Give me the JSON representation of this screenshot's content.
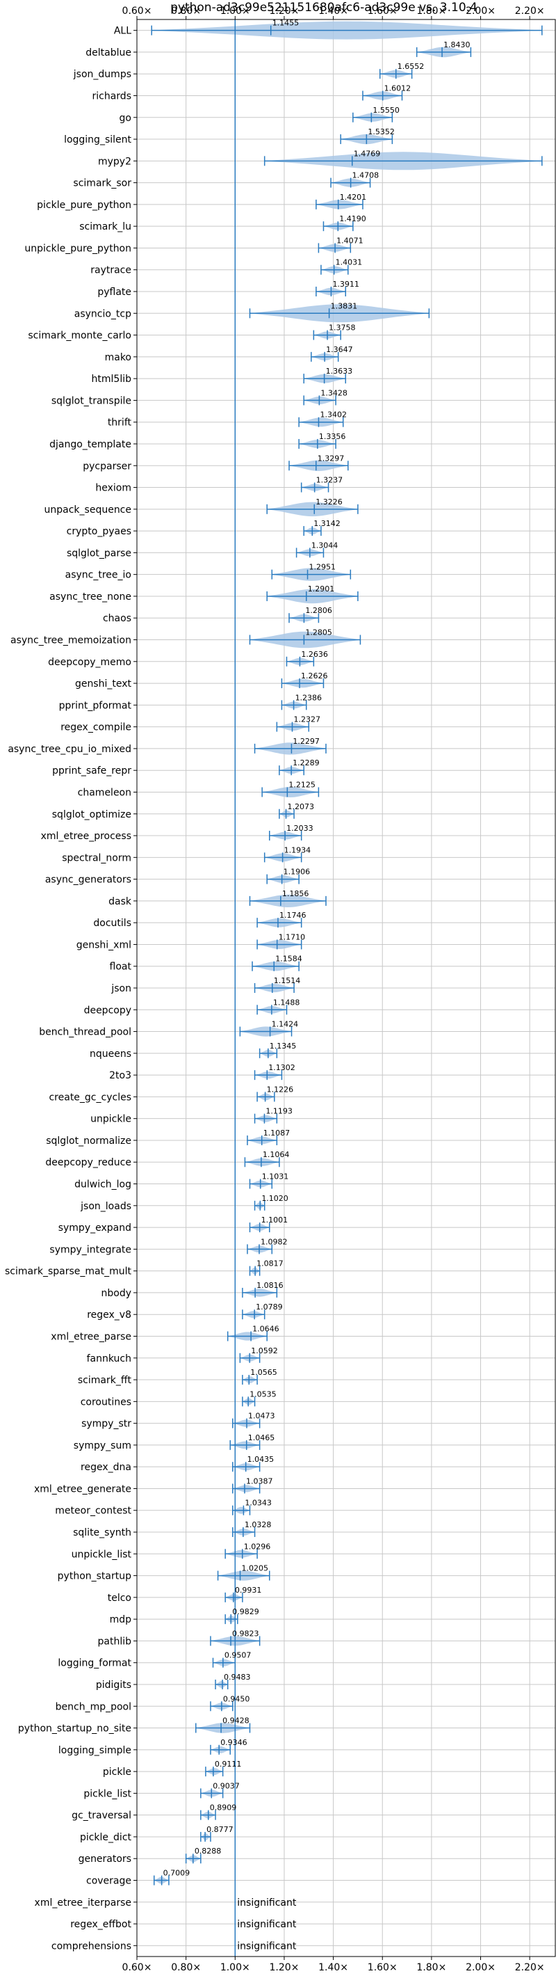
{
  "chart_data": {
    "type": "violin",
    "title": "python-ad3c99e521151680afc6-ad3c99e vs. 3.10.4",
    "xlabel": "",
    "ylabel": "",
    "xlim": [
      0.6,
      2.3
    ],
    "xticks": [
      0.6,
      0.8,
      1.0,
      1.2,
      1.4,
      1.6,
      1.8,
      2.0,
      2.2
    ],
    "xtick_labels": [
      "0.60×",
      "0.80×",
      "1.00×",
      "1.20×",
      "1.40×",
      "1.60×",
      "1.80×",
      "2.00×",
      "2.20×"
    ],
    "reference_line": 1.0,
    "grid": true,
    "colors": {
      "violin_fill": "#aac8e6",
      "line": "#2a7bc0",
      "grid": "#c8c8c8"
    },
    "benchmarks": [
      {
        "name": "ALL",
        "label": "1.1455",
        "mean": 1.1455,
        "min": 0.66,
        "max": 2.25
      },
      {
        "name": "deltablue",
        "label": "1.8430",
        "mean": 1.843,
        "min": 1.74,
        "max": 1.96
      },
      {
        "name": "json_dumps",
        "label": "1.6552",
        "mean": 1.6552,
        "min": 1.59,
        "max": 1.72
      },
      {
        "name": "richards",
        "label": "1.6012",
        "mean": 1.6012,
        "min": 1.52,
        "max": 1.68
      },
      {
        "name": "go",
        "label": "1.5550",
        "mean": 1.555,
        "min": 1.48,
        "max": 1.64
      },
      {
        "name": "logging_silent",
        "label": "1.5352",
        "mean": 1.5352,
        "min": 1.43,
        "max": 1.64
      },
      {
        "name": "mypy2",
        "label": "1.4769",
        "mean": 1.4769,
        "min": 1.12,
        "max": 2.25
      },
      {
        "name": "scimark_sor",
        "label": "1.4708",
        "mean": 1.4708,
        "min": 1.39,
        "max": 1.55
      },
      {
        "name": "pickle_pure_python",
        "label": "1.4201",
        "mean": 1.4201,
        "min": 1.33,
        "max": 1.52
      },
      {
        "name": "scimark_lu",
        "label": "1.4190",
        "mean": 1.419,
        "min": 1.36,
        "max": 1.48
      },
      {
        "name": "unpickle_pure_python",
        "label": "1.4071",
        "mean": 1.4071,
        "min": 1.34,
        "max": 1.47
      },
      {
        "name": "raytrace",
        "label": "1.4031",
        "mean": 1.4031,
        "min": 1.35,
        "max": 1.46
      },
      {
        "name": "pyflate",
        "label": "1.3911",
        "mean": 1.3911,
        "min": 1.33,
        "max": 1.45
      },
      {
        "name": "asyncio_tcp",
        "label": "1.3831",
        "mean": 1.3831,
        "min": 1.06,
        "max": 1.79
      },
      {
        "name": "scimark_monte_carlo",
        "label": "1.3758",
        "mean": 1.3758,
        "min": 1.32,
        "max": 1.43
      },
      {
        "name": "mako",
        "label": "1.3647",
        "mean": 1.3647,
        "min": 1.31,
        "max": 1.42
      },
      {
        "name": "html5lib",
        "label": "1.3633",
        "mean": 1.3633,
        "min": 1.28,
        "max": 1.45
      },
      {
        "name": "sqlglot_transpile",
        "label": "1.3428",
        "mean": 1.3428,
        "min": 1.28,
        "max": 1.41
      },
      {
        "name": "thrift",
        "label": "1.3402",
        "mean": 1.3402,
        "min": 1.26,
        "max": 1.44
      },
      {
        "name": "django_template",
        "label": "1.3356",
        "mean": 1.3356,
        "min": 1.26,
        "max": 1.41
      },
      {
        "name": "pycparser",
        "label": "1.3297",
        "mean": 1.3297,
        "min": 1.22,
        "max": 1.46
      },
      {
        "name": "hexiom",
        "label": "1.3237",
        "mean": 1.3237,
        "min": 1.27,
        "max": 1.38
      },
      {
        "name": "unpack_sequence",
        "label": "1.3226",
        "mean": 1.3226,
        "min": 1.13,
        "max": 1.5
      },
      {
        "name": "crypto_pyaes",
        "label": "1.3142",
        "mean": 1.3142,
        "min": 1.28,
        "max": 1.35
      },
      {
        "name": "sqlglot_parse",
        "label": "1.3044",
        "mean": 1.3044,
        "min": 1.25,
        "max": 1.36
      },
      {
        "name": "async_tree_io",
        "label": "1.2951",
        "mean": 1.2951,
        "min": 1.15,
        "max": 1.47
      },
      {
        "name": "async_tree_none",
        "label": "1.2901",
        "mean": 1.2901,
        "min": 1.13,
        "max": 1.5
      },
      {
        "name": "chaos",
        "label": "1.2806",
        "mean": 1.2806,
        "min": 1.22,
        "max": 1.34
      },
      {
        "name": "async_tree_memoization",
        "label": "1.2805",
        "mean": 1.2805,
        "min": 1.06,
        "max": 1.51
      },
      {
        "name": "deepcopy_memo",
        "label": "1.2636",
        "mean": 1.2636,
        "min": 1.21,
        "max": 1.32
      },
      {
        "name": "genshi_text",
        "label": "1.2626",
        "mean": 1.2626,
        "min": 1.19,
        "max": 1.36
      },
      {
        "name": "pprint_pformat",
        "label": "1.2386",
        "mean": 1.2386,
        "min": 1.19,
        "max": 1.29
      },
      {
        "name": "regex_compile",
        "label": "1.2327",
        "mean": 1.2327,
        "min": 1.17,
        "max": 1.3
      },
      {
        "name": "async_tree_cpu_io_mixed",
        "label": "1.2297",
        "mean": 1.2297,
        "min": 1.08,
        "max": 1.37
      },
      {
        "name": "pprint_safe_repr",
        "label": "1.2289",
        "mean": 1.2289,
        "min": 1.18,
        "max": 1.28
      },
      {
        "name": "chameleon",
        "label": "1.2125",
        "mean": 1.2125,
        "min": 1.11,
        "max": 1.34
      },
      {
        "name": "sqlglot_optimize",
        "label": "1.2073",
        "mean": 1.2073,
        "min": 1.18,
        "max": 1.24
      },
      {
        "name": "xml_etree_process",
        "label": "1.2033",
        "mean": 1.2033,
        "min": 1.14,
        "max": 1.27
      },
      {
        "name": "spectral_norm",
        "label": "1.1934",
        "mean": 1.1934,
        "min": 1.12,
        "max": 1.27
      },
      {
        "name": "async_generators",
        "label": "1.1906",
        "mean": 1.1906,
        "min": 1.13,
        "max": 1.26
      },
      {
        "name": "dask",
        "label": "1.1856",
        "mean": 1.1856,
        "min": 1.06,
        "max": 1.37
      },
      {
        "name": "docutils",
        "label": "1.1746",
        "mean": 1.1746,
        "min": 1.09,
        "max": 1.27
      },
      {
        "name": "genshi_xml",
        "label": "1.1710",
        "mean": 1.171,
        "min": 1.09,
        "max": 1.27
      },
      {
        "name": "float",
        "label": "1.1584",
        "mean": 1.1584,
        "min": 1.07,
        "max": 1.26
      },
      {
        "name": "json",
        "label": "1.1514",
        "mean": 1.1514,
        "min": 1.08,
        "max": 1.24
      },
      {
        "name": "deepcopy",
        "label": "1.1488",
        "mean": 1.1488,
        "min": 1.09,
        "max": 1.21
      },
      {
        "name": "bench_thread_pool",
        "label": "1.1424",
        "mean": 1.1424,
        "min": 1.02,
        "max": 1.23
      },
      {
        "name": "nqueens",
        "label": "1.1345",
        "mean": 1.1345,
        "min": 1.1,
        "max": 1.17
      },
      {
        "name": "2to3",
        "label": "1.1302",
        "mean": 1.1302,
        "min": 1.08,
        "max": 1.19
      },
      {
        "name": "create_gc_cycles",
        "label": "1.1226",
        "mean": 1.1226,
        "min": 1.09,
        "max": 1.16
      },
      {
        "name": "unpickle",
        "label": "1.1193",
        "mean": 1.1193,
        "min": 1.08,
        "max": 1.17
      },
      {
        "name": "sqlglot_normalize",
        "label": "1.1087",
        "mean": 1.1087,
        "min": 1.05,
        "max": 1.17
      },
      {
        "name": "deepcopy_reduce",
        "label": "1.1064",
        "mean": 1.1064,
        "min": 1.04,
        "max": 1.18
      },
      {
        "name": "dulwich_log",
        "label": "1.1031",
        "mean": 1.1031,
        "min": 1.06,
        "max": 1.15
      },
      {
        "name": "json_loads",
        "label": "1.1020",
        "mean": 1.102,
        "min": 1.08,
        "max": 1.12
      },
      {
        "name": "sympy_expand",
        "label": "1.1001",
        "mean": 1.1001,
        "min": 1.06,
        "max": 1.14
      },
      {
        "name": "sympy_integrate",
        "label": "1.0982",
        "mean": 1.0982,
        "min": 1.05,
        "max": 1.15
      },
      {
        "name": "scimark_sparse_mat_mult",
        "label": "1.0817",
        "mean": 1.0817,
        "min": 1.06,
        "max": 1.1
      },
      {
        "name": "nbody",
        "label": "1.0816",
        "mean": 1.0816,
        "min": 1.03,
        "max": 1.17
      },
      {
        "name": "regex_v8",
        "label": "1.0789",
        "mean": 1.0789,
        "min": 1.03,
        "max": 1.12
      },
      {
        "name": "xml_etree_parse",
        "label": "1.0646",
        "mean": 1.0646,
        "min": 0.97,
        "max": 1.13
      },
      {
        "name": "fannkuch",
        "label": "1.0592",
        "mean": 1.0592,
        "min": 1.02,
        "max": 1.1
      },
      {
        "name": "scimark_fft",
        "label": "1.0565",
        "mean": 1.0565,
        "min": 1.03,
        "max": 1.09
      },
      {
        "name": "coroutines",
        "label": "1.0535",
        "mean": 1.0535,
        "min": 1.03,
        "max": 1.08
      },
      {
        "name": "sympy_str",
        "label": "1.0473",
        "mean": 1.0473,
        "min": 0.99,
        "max": 1.1
      },
      {
        "name": "sympy_sum",
        "label": "1.0465",
        "mean": 1.0465,
        "min": 0.98,
        "max": 1.1
      },
      {
        "name": "regex_dna",
        "label": "1.0435",
        "mean": 1.0435,
        "min": 0.99,
        "max": 1.1
      },
      {
        "name": "xml_etree_generate",
        "label": "1.0387",
        "mean": 1.0387,
        "min": 0.99,
        "max": 1.1
      },
      {
        "name": "meteor_contest",
        "label": "1.0343",
        "mean": 1.0343,
        "min": 0.99,
        "max": 1.06
      },
      {
        "name": "sqlite_synth",
        "label": "1.0328",
        "mean": 1.0328,
        "min": 0.99,
        "max": 1.08
      },
      {
        "name": "unpickle_list",
        "label": "1.0296",
        "mean": 1.0296,
        "min": 0.96,
        "max": 1.09
      },
      {
        "name": "python_startup",
        "label": "1.0205",
        "mean": 1.0205,
        "min": 0.93,
        "max": 1.14
      },
      {
        "name": "telco",
        "label": "0.9931",
        "mean": 0.9931,
        "min": 0.96,
        "max": 1.03
      },
      {
        "name": "mdp",
        "label": "0.9829",
        "mean": 0.9829,
        "min": 0.96,
        "max": 1.01
      },
      {
        "name": "pathlib",
        "label": "0.9823",
        "mean": 0.9823,
        "min": 0.9,
        "max": 1.1
      },
      {
        "name": "logging_format",
        "label": "0.9507",
        "mean": 0.9507,
        "min": 0.91,
        "max": 1.0
      },
      {
        "name": "pidigits",
        "label": "0.9483",
        "mean": 0.9483,
        "min": 0.92,
        "max": 0.97
      },
      {
        "name": "bench_mp_pool",
        "label": "0.9450",
        "mean": 0.945,
        "min": 0.9,
        "max": 0.99
      },
      {
        "name": "python_startup_no_site",
        "label": "0.9428",
        "mean": 0.9428,
        "min": 0.84,
        "max": 1.06
      },
      {
        "name": "logging_simple",
        "label": "0.9346",
        "mean": 0.9346,
        "min": 0.9,
        "max": 0.98
      },
      {
        "name": "pickle",
        "label": "0.9111",
        "mean": 0.9111,
        "min": 0.88,
        "max": 0.95
      },
      {
        "name": "pickle_list",
        "label": "0.9037",
        "mean": 0.9037,
        "min": 0.86,
        "max": 0.95
      },
      {
        "name": "gc_traversal",
        "label": "0.8909",
        "mean": 0.8909,
        "min": 0.86,
        "max": 0.92
      },
      {
        "name": "pickle_dict",
        "label": "0.8777",
        "mean": 0.8777,
        "min": 0.86,
        "max": 0.9
      },
      {
        "name": "generators",
        "label": "0.8288",
        "mean": 0.8288,
        "min": 0.8,
        "max": 0.86
      },
      {
        "name": "coverage",
        "label": "0.7009",
        "mean": 0.7009,
        "min": 0.67,
        "max": 0.73
      },
      {
        "name": "xml_etree_iterparse",
        "label": "insignificant",
        "mean": null,
        "min": null,
        "max": null
      },
      {
        "name": "regex_effbot",
        "label": "insignificant",
        "mean": null,
        "min": null,
        "max": null
      },
      {
        "name": "comprehensions",
        "label": "insignificant",
        "mean": null,
        "min": null,
        "max": null
      }
    ]
  }
}
